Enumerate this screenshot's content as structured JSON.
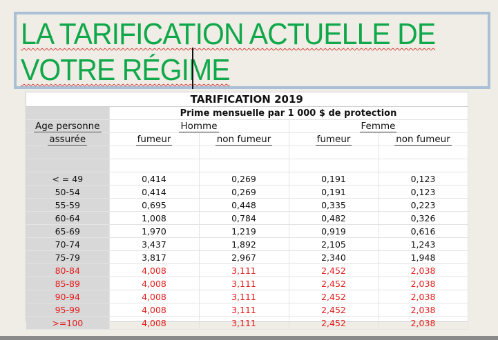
{
  "slide": {
    "title_line1": "LA TARIFICATION ACTUELLE DE",
    "title_line2": "VOTRE RÉGIME",
    "title_color": "#10a84a"
  },
  "table": {
    "title": "TARIFICATION 2019",
    "subtitle": "Prime mensuelle par 1 000 $ de protection",
    "age_header_line1": "Age personne",
    "age_header_line2": "assurée",
    "group_homme": "Homme",
    "group_femme": "Femme",
    "col_fumeur": "fumeur",
    "col_non_fumeur": "non fumeur",
    "highlight_color": "#e31b1b",
    "rows": [
      {
        "age": "< = 49",
        "h_f": "0,414",
        "h_nf": "0,269",
        "f_f": "0,191",
        "f_nf": "0,123"
      },
      {
        "age": "50-54",
        "h_f": "0,414",
        "h_nf": "0,269",
        "f_f": "0,191",
        "f_nf": "0,123"
      },
      {
        "age": "55-59",
        "h_f": "0,695",
        "h_nf": "0,448",
        "f_f": "0,335",
        "f_nf": "0,223"
      },
      {
        "age": "60-64",
        "h_f": "1,008",
        "h_nf": "0,784",
        "f_f": "0,482",
        "f_nf": "0,326"
      },
      {
        "age": "65-69",
        "h_f": "1,970",
        "h_nf": "1,219",
        "f_f": "0,919",
        "f_nf": "0,616"
      },
      {
        "age": "70-74",
        "h_f": "3,437",
        "h_nf": "1,892",
        "f_f": "2,105",
        "f_nf": "1,243"
      },
      {
        "age": "75-79",
        "h_f": "3,817",
        "h_nf": "2,967",
        "f_f": "2,340",
        "f_nf": "1,948"
      },
      {
        "age": "80-84",
        "h_f": "4,008",
        "h_nf": "3,111",
        "f_f": "2,452",
        "f_nf": "2,038",
        "highlight": true
      },
      {
        "age": "85-89",
        "h_f": "4,008",
        "h_nf": "3,111",
        "f_f": "2,452",
        "f_nf": "2,038",
        "highlight": true
      },
      {
        "age": "90-94",
        "h_f": "4,008",
        "h_nf": "3,111",
        "f_f": "2,452",
        "f_nf": "2,038",
        "highlight": true
      },
      {
        "age": "95-99",
        "h_f": "4,008",
        "h_nf": "3,111",
        "f_f": "2,452",
        "f_nf": "2,038",
        "highlight": true
      },
      {
        "age": ">=100",
        "h_f": "4,008",
        "h_nf": "3,111",
        "f_f": "2,452",
        "f_nf": "2,038",
        "highlight": true
      }
    ]
  }
}
